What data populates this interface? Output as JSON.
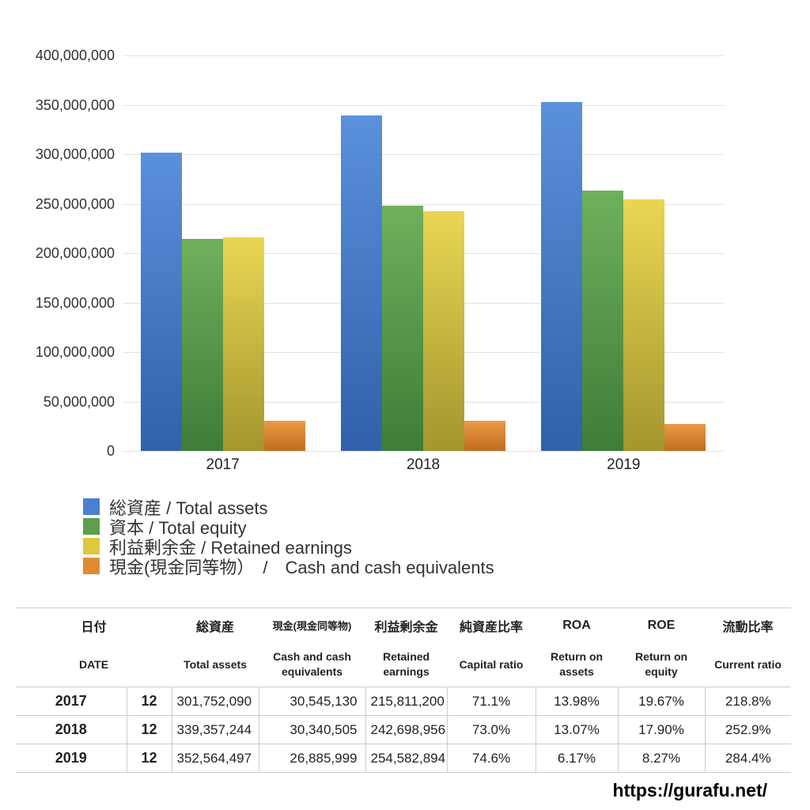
{
  "chart_data": {
    "type": "bar",
    "title": "",
    "xlabel": "",
    "ylabel": "",
    "categories": [
      "2017",
      "2018",
      "2019"
    ],
    "series": [
      {
        "key": "total-assets",
        "name": "総資産 / Total assets",
        "values": [
          301752090,
          339357244,
          352564497
        ],
        "color_top": "#5b90dc",
        "color_bottom": "#3061aa",
        "legend_color": "#4a80d2"
      },
      {
        "key": "total-equity",
        "name": "資本 / Total equity",
        "values": [
          214545736,
          247730788,
          263013115
        ],
        "color_top": "#6fb05c",
        "color_bottom": "#3f7c38",
        "legend_color": "#5d9e4d"
      },
      {
        "key": "retained-earnings",
        "name": "利益剰余金 / Retained earnings",
        "values": [
          215811200,
          242698956,
          254582894
        ],
        "color_top": "#e9d653",
        "color_bottom": "#a3962d",
        "legend_color": "#ddc83e"
      },
      {
        "key": "cash-and-cash-equivalents",
        "name": "現金(現金同等物）　/　Cash and cash equivalents",
        "values": [
          30545130,
          30340505,
          26885999
        ],
        "color_top": "#ec9a45",
        "color_bottom": "#c06c1e",
        "legend_color": "#e28a33"
      }
    ],
    "ylim": [
      0,
      400000000
    ],
    "y_tick_step": 50000000,
    "y_tick_labels": [
      "400,000,000",
      "350,000,000",
      "300,000,000",
      "250,000,000",
      "200,000,000",
      "150,000,000",
      "100,000,000",
      "50,000,000",
      "0"
    ],
    "grid": true,
    "legend_position": "bottom-left"
  },
  "table": {
    "header_jp": [
      "日付",
      "総資産",
      "現金(現金同等物)",
      "利益剰余金",
      "純資産比率",
      "ROA",
      "ROE",
      "流動比率"
    ],
    "header_en": [
      "DATE",
      "Total assets",
      "Cash and cash equivalents",
      "Retained earnings",
      "Capital ratio",
      "Return on assets",
      "Return on equity",
      "Current ratio"
    ],
    "rows": [
      [
        "2017",
        "12",
        "301,752,090",
        "30,545,130",
        "215,811,200",
        "71.1%",
        "13.98%",
        "19.67%",
        "218.8%"
      ],
      [
        "2018",
        "12",
        "339,357,244",
        "30,340,505",
        "242,698,956",
        "73.0%",
        "13.07%",
        "17.90%",
        "252.9%"
      ],
      [
        "2019",
        "12",
        "352,564,497",
        "26,885,999",
        "254,582,894",
        "74.6%",
        "6.17%",
        "8.27%",
        "284.4%"
      ]
    ]
  },
  "footer": {
    "url": "https://gurafu.net/"
  }
}
